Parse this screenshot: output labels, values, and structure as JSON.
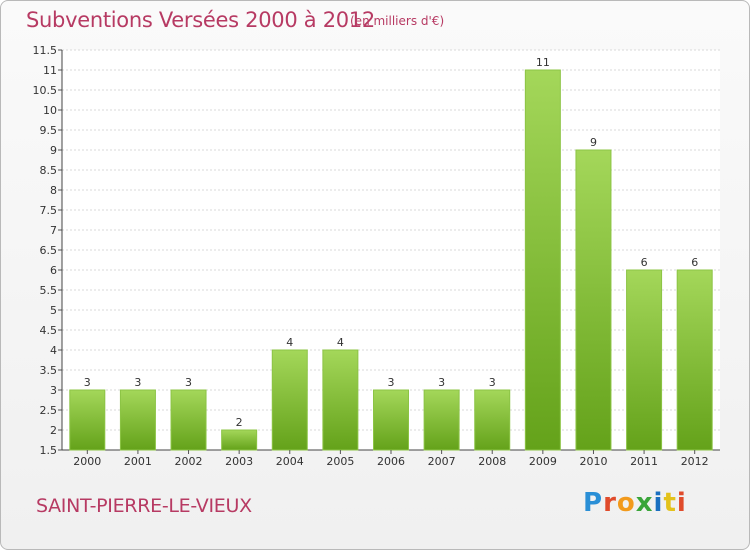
{
  "header": {
    "title": "Subventions Versées 2000 à 2012",
    "unit": "(en milliers d'€)"
  },
  "footer": {
    "commune": "SAINT-PIERRE-LE-VIEUX",
    "logo_letters": [
      "P",
      "r",
      "o",
      "x",
      "i",
      "t",
      "i"
    ]
  },
  "colors": {
    "title": "#b73a63",
    "bar_top": "#a4d75a",
    "bar_bottom": "#64a21a",
    "grid": "#d9d9d9"
  },
  "chart_data": {
    "type": "bar",
    "title": "Subventions Versées 2000 à 2012",
    "subtitle": "(en milliers d'€)",
    "categories": [
      "2000",
      "2001",
      "2002",
      "2003",
      "2004",
      "2005",
      "2006",
      "2007",
      "2008",
      "2009",
      "2010",
      "2011",
      "2012"
    ],
    "values": [
      3,
      3,
      3,
      2,
      4,
      4,
      3,
      3,
      3,
      11,
      9,
      6,
      6
    ],
    "value_labels": [
      "3",
      "3",
      "3",
      "2",
      "4",
      "4",
      "3",
      "3",
      "3",
      "11",
      "9",
      "6",
      "6"
    ],
    "xlabel": "",
    "ylabel": "",
    "ylim": [
      1.5,
      11.5
    ],
    "yticks": [
      "1.5",
      "2",
      "2.5",
      "3",
      "3.5",
      "4",
      "4.5",
      "5",
      "5.5",
      "6",
      "6.5",
      "7",
      "7.5",
      "8",
      "8.5",
      "9",
      "9.5",
      "10",
      "10.5",
      "11",
      "11.5"
    ],
    "grid": true,
    "legend": "none"
  }
}
